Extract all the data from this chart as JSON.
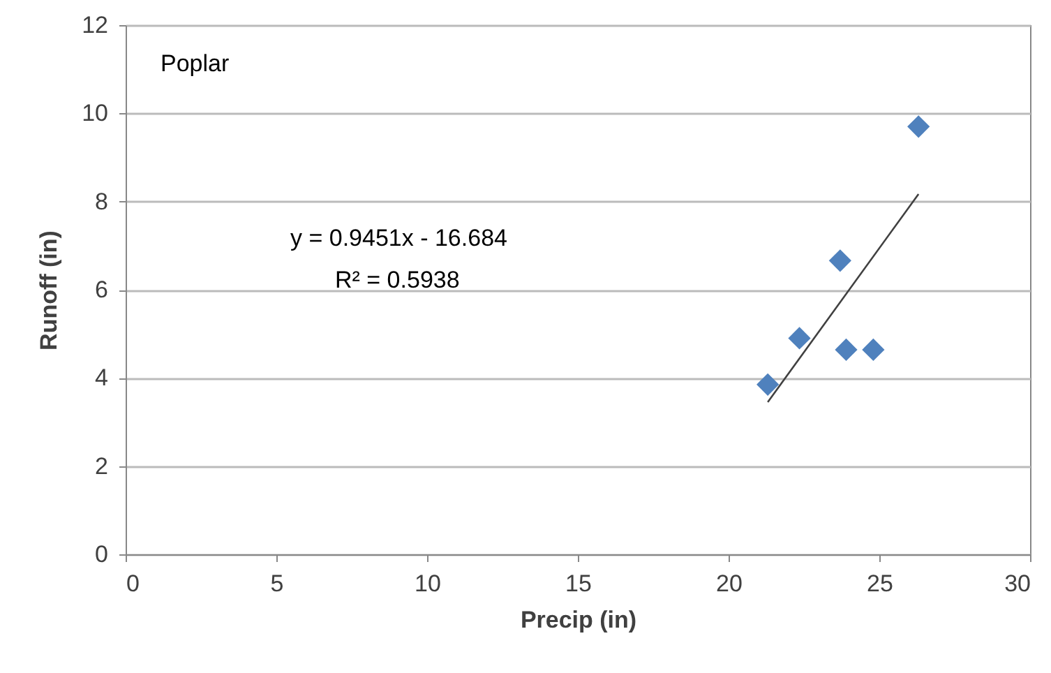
{
  "chart_data": {
    "type": "scatter",
    "xlabel": "Precip (in)",
    "ylabel": "Runoff (in)",
    "annotations": [
      "Poplar",
      "y = 0.9451x - 16.684",
      "R² = 0.5938"
    ],
    "xlim": [
      0,
      30
    ],
    "xticks": [
      0,
      5,
      10,
      15,
      20,
      25,
      30
    ],
    "ylim": [
      0,
      12
    ],
    "yticks": [
      0,
      2,
      4,
      6,
      8,
      10,
      12
    ],
    "grid": "y",
    "legend": false,
    "marker": "diamond",
    "series": [
      {
        "color": "#4f81bd",
        "x": [
          21.3,
          22.35,
          23.7,
          23.9,
          24.8,
          26.3
        ],
        "values": [
          3.85,
          4.9,
          6.66,
          4.64,
          4.64,
          9.7
        ]
      },
      {
        "type": "line",
        "color": "#404040",
        "x": [
          21.3,
          26.3
        ],
        "values": [
          3.45,
          8.17
        ],
        "marker": "none",
        "line_style": "solid"
      }
    ]
  }
}
